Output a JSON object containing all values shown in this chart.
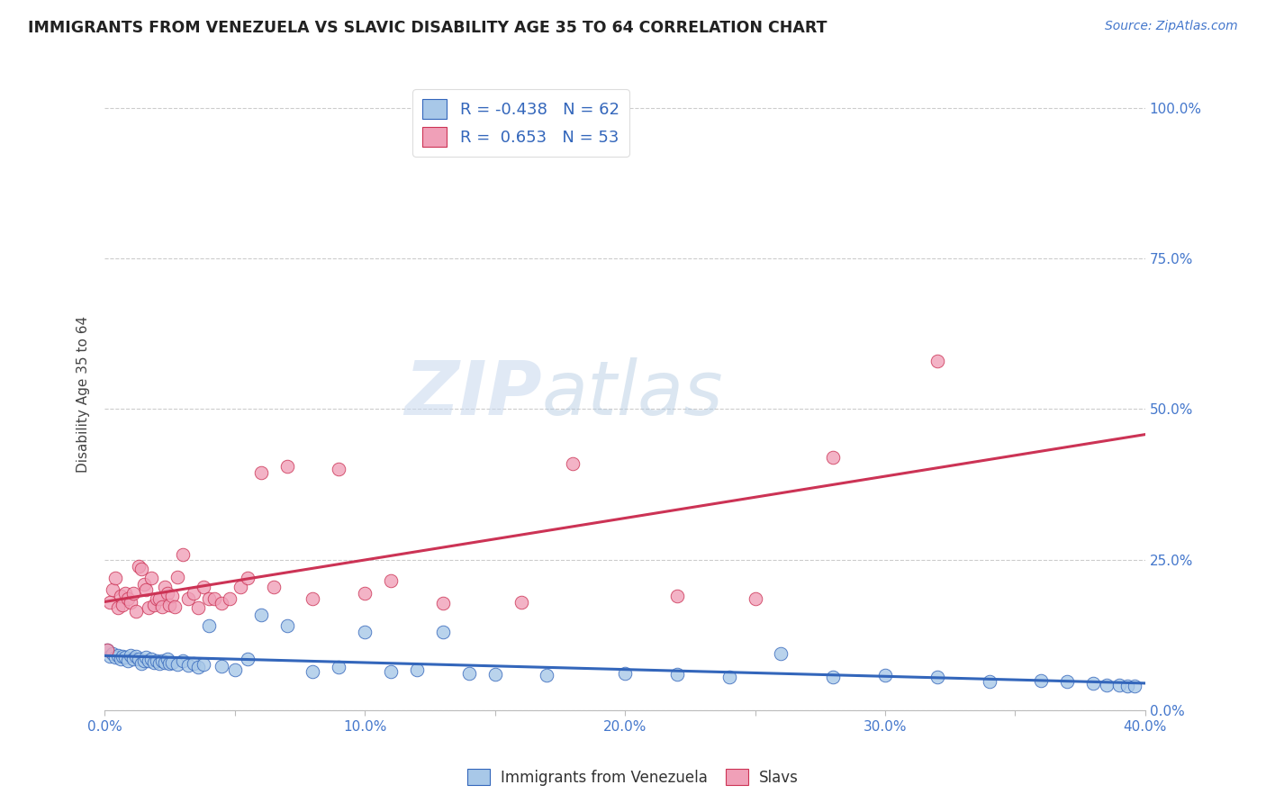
{
  "title": "IMMIGRANTS FROM VENEZUELA VS SLAVIC DISABILITY AGE 35 TO 64 CORRELATION CHART",
  "source": "Source: ZipAtlas.com",
  "ylabel_label": "Disability Age 35 to 64",
  "legend_label1": "Immigrants from Venezuela",
  "legend_label2": "Slavs",
  "R1": -0.438,
  "N1": 62,
  "R2": 0.653,
  "N2": 53,
  "xlim": [
    0.0,
    0.4
  ],
  "ylim": [
    0.0,
    1.05
  ],
  "xticks": [
    0.0,
    0.1,
    0.2,
    0.3,
    0.4
  ],
  "xtick_labels": [
    "0.0%",
    "",
    "10.0%",
    "",
    "20.0%",
    "",
    "30.0%",
    "",
    "40.0%"
  ],
  "xtick_vals": [
    0.0,
    0.05,
    0.1,
    0.15,
    0.2,
    0.25,
    0.3,
    0.35,
    0.4
  ],
  "ytick_labels": [
    "100.0%",
    "75.0%",
    "50.0%",
    "25.0%",
    "0.0%"
  ],
  "ytick_vals": [
    1.0,
    0.75,
    0.5,
    0.25,
    0.0
  ],
  "color_blue": "#a8c8e8",
  "color_pink": "#f0a0b8",
  "line_blue": "#3366bb",
  "line_pink": "#cc3355",
  "watermark_zip": "ZIP",
  "watermark_atlas": "atlas",
  "background_color": "#ffffff",
  "blue_scatter_x": [
    0.001,
    0.002,
    0.003,
    0.004,
    0.005,
    0.006,
    0.007,
    0.008,
    0.009,
    0.01,
    0.011,
    0.012,
    0.013,
    0.014,
    0.015,
    0.016,
    0.017,
    0.018,
    0.019,
    0.02,
    0.021,
    0.022,
    0.023,
    0.024,
    0.025,
    0.026,
    0.028,
    0.03,
    0.032,
    0.034,
    0.036,
    0.038,
    0.04,
    0.045,
    0.05,
    0.055,
    0.06,
    0.07,
    0.08,
    0.09,
    0.1,
    0.11,
    0.12,
    0.13,
    0.14,
    0.15,
    0.17,
    0.2,
    0.22,
    0.24,
    0.26,
    0.28,
    0.3,
    0.32,
    0.34,
    0.36,
    0.37,
    0.38,
    0.385,
    0.39,
    0.393,
    0.396
  ],
  "blue_scatter_y": [
    0.1,
    0.09,
    0.095,
    0.088,
    0.092,
    0.085,
    0.09,
    0.088,
    0.083,
    0.092,
    0.086,
    0.09,
    0.085,
    0.078,
    0.082,
    0.088,
    0.083,
    0.086,
    0.08,
    0.082,
    0.078,
    0.083,
    0.08,
    0.085,
    0.078,
    0.08,
    0.076,
    0.082,
    0.075,
    0.078,
    0.072,
    0.076,
    0.14,
    0.073,
    0.068,
    0.085,
    0.158,
    0.14,
    0.065,
    0.072,
    0.13,
    0.065,
    0.068,
    0.13,
    0.062,
    0.06,
    0.058,
    0.062,
    0.06,
    0.055,
    0.095,
    0.055,
    0.058,
    0.055,
    0.048,
    0.05,
    0.048,
    0.045,
    0.042,
    0.042,
    0.04,
    0.04
  ],
  "pink_scatter_x": [
    0.001,
    0.002,
    0.003,
    0.004,
    0.005,
    0.006,
    0.007,
    0.008,
    0.009,
    0.01,
    0.011,
    0.012,
    0.013,
    0.014,
    0.015,
    0.016,
    0.017,
    0.018,
    0.019,
    0.02,
    0.021,
    0.022,
    0.023,
    0.024,
    0.025,
    0.026,
    0.027,
    0.028,
    0.03,
    0.032,
    0.034,
    0.036,
    0.038,
    0.04,
    0.042,
    0.045,
    0.048,
    0.052,
    0.055,
    0.06,
    0.065,
    0.07,
    0.08,
    0.09,
    0.1,
    0.11,
    0.13,
    0.16,
    0.18,
    0.22,
    0.25,
    0.28,
    0.32
  ],
  "pink_scatter_y": [
    0.1,
    0.18,
    0.2,
    0.22,
    0.17,
    0.19,
    0.175,
    0.195,
    0.185,
    0.18,
    0.195,
    0.165,
    0.24,
    0.235,
    0.21,
    0.2,
    0.17,
    0.22,
    0.175,
    0.185,
    0.185,
    0.172,
    0.205,
    0.195,
    0.175,
    0.19,
    0.172,
    0.222,
    0.258,
    0.185,
    0.195,
    0.17,
    0.205,
    0.185,
    0.185,
    0.178,
    0.185,
    0.205,
    0.22,
    0.395,
    0.205,
    0.405,
    0.185,
    0.4,
    0.195,
    0.215,
    0.178,
    0.18,
    0.41,
    0.19,
    0.185,
    0.42,
    0.58
  ]
}
